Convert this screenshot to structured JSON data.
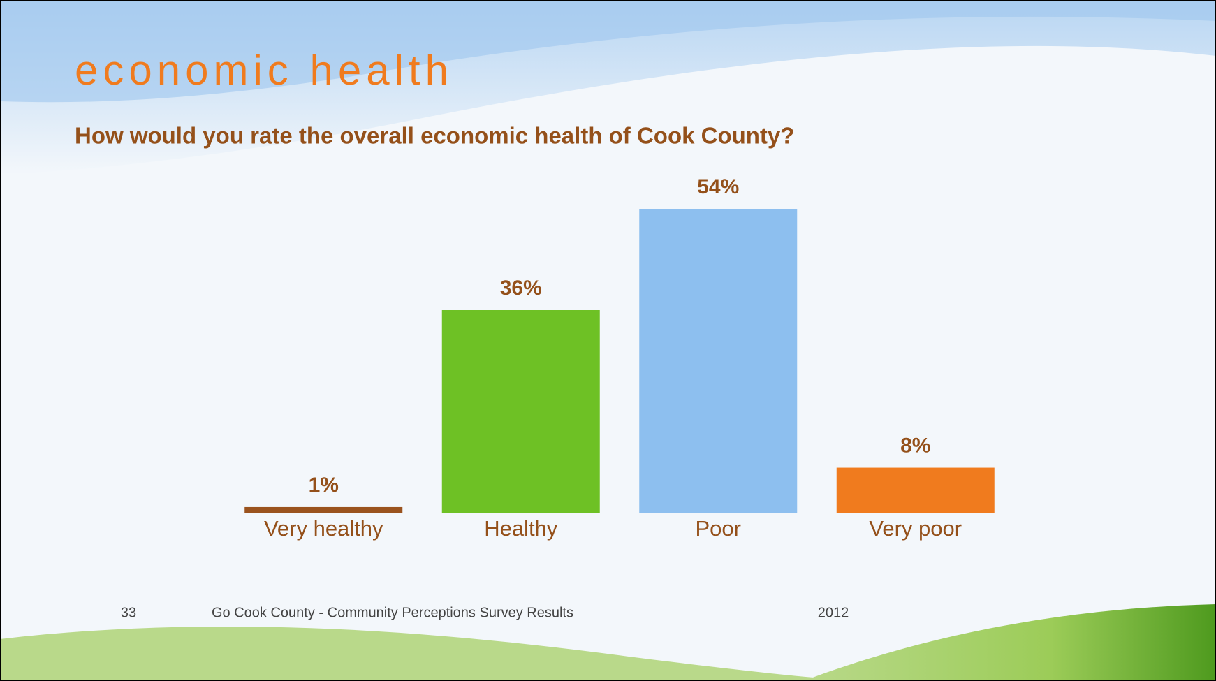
{
  "slide": {
    "title": "economic health",
    "page_number": "33",
    "footer": "Go Cook County - Community Perceptions Survey Results",
    "year": "2012"
  },
  "chart_data": {
    "type": "bar",
    "title": "How would you rate the overall economic health of Cook County?",
    "categories": [
      "Very healthy",
      "Healthy",
      "Poor",
      "Very poor"
    ],
    "values": [
      1,
      36,
      54,
      8
    ],
    "value_labels": [
      "1%",
      "36%",
      "54%",
      "8%"
    ],
    "colors": [
      "#9a531e",
      "#6ec125",
      "#8dbfef",
      "#f07b1e"
    ]
  }
}
